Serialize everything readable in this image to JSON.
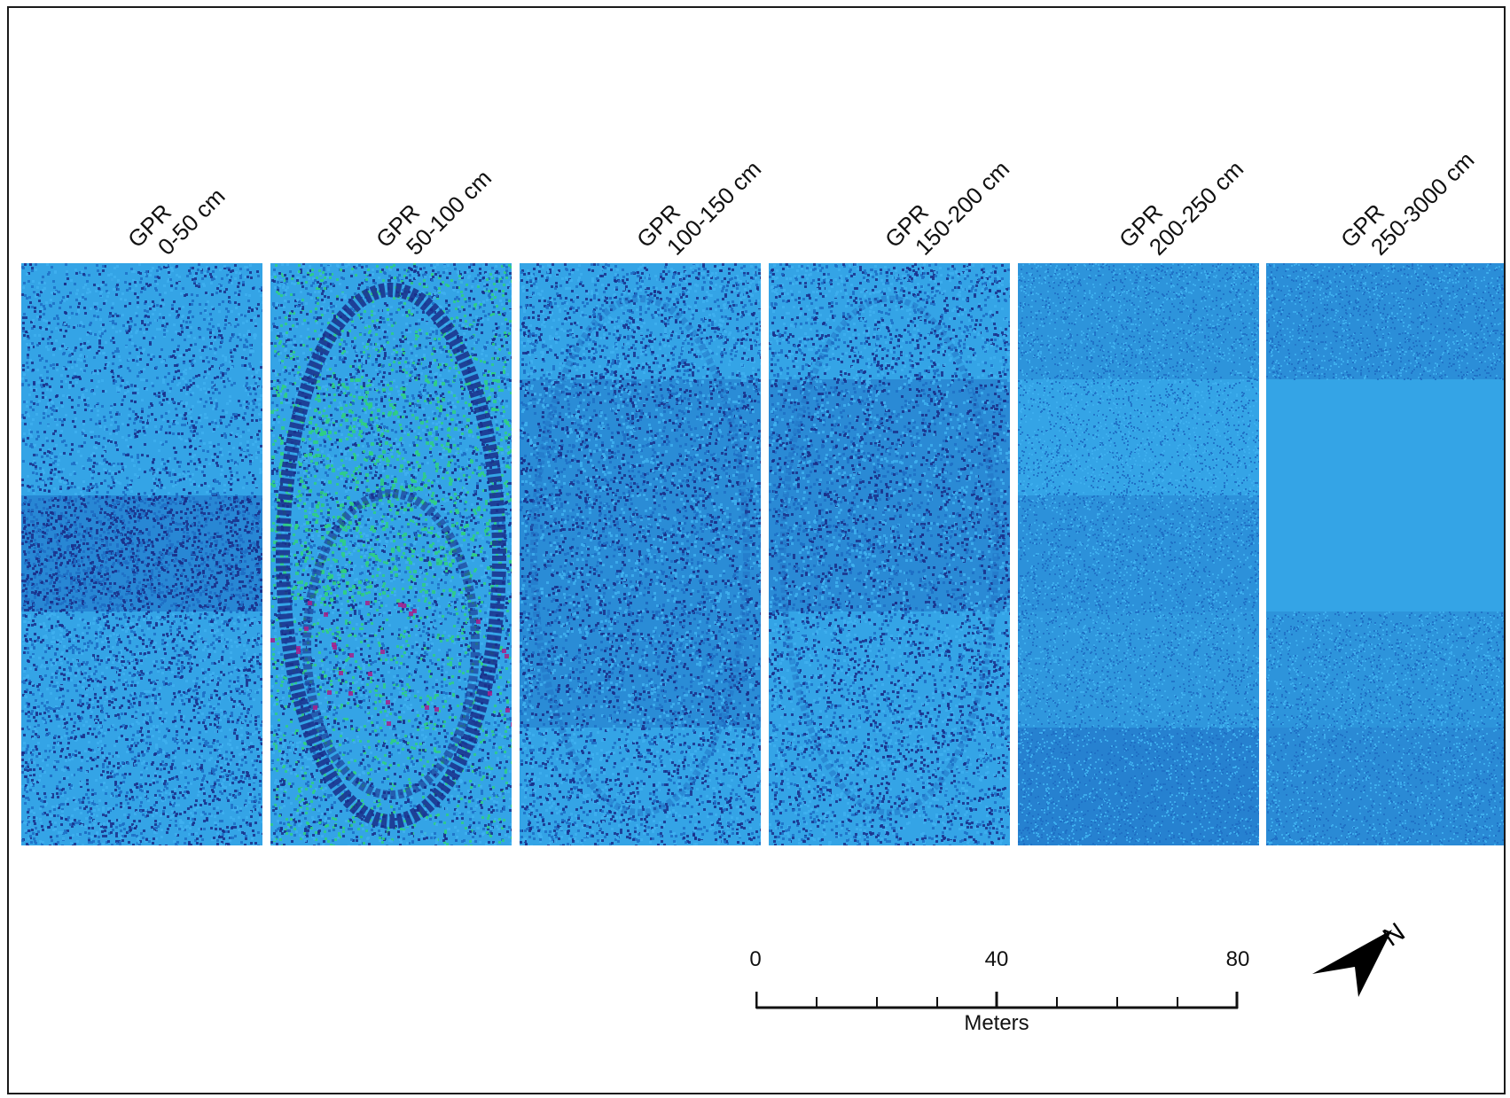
{
  "panels": [
    {
      "line1": "GPR",
      "line2": "0-50 cm",
      "variant": "mixed-dark-mid"
    },
    {
      "line1": "GPR",
      "line2": "50-100 cm",
      "variant": "ring-strong"
    },
    {
      "line1": "GPR",
      "line2": "100-150 cm",
      "variant": "ring-faint-dark"
    },
    {
      "line1": "GPR",
      "line2": "150-200  cm",
      "variant": "ring-faint-dark2"
    },
    {
      "line1": "GPR",
      "line2": "200-250 cm",
      "variant": "bands-flat"
    },
    {
      "line1": "GPR",
      "line2": "250-3000 cm",
      "variant": "bands-flat2"
    }
  ],
  "colors": {
    "base": "#34a4e6",
    "dark": "#1a2f8a",
    "mid": "#1f6fc4",
    "light": "#3fb0ee",
    "green": "#2fd080",
    "magenta": "#a8208a"
  },
  "scale_bar": {
    "ticks": [
      "0",
      "40",
      "80"
    ],
    "units": "Meters"
  },
  "north_arrow": {
    "label": "N",
    "icon": "north-arrow-icon"
  }
}
